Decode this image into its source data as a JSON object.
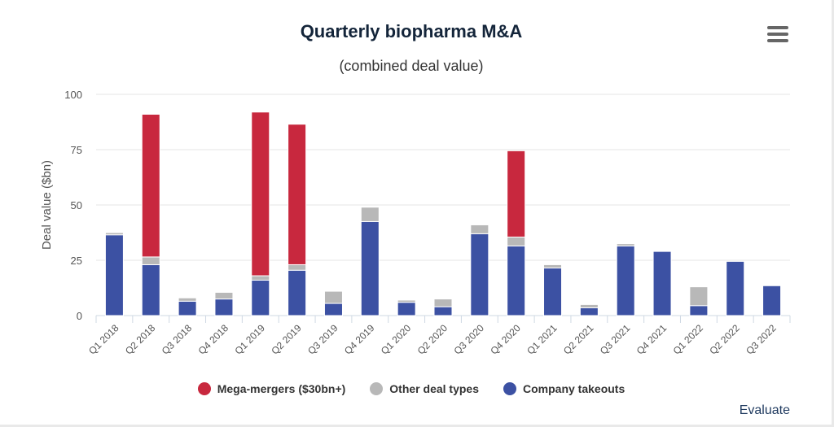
{
  "chart_data": {
    "type": "bar",
    "stacked": true,
    "title": "Quarterly biopharma M&A",
    "subtitle": "(combined deal value)",
    "ylabel": "Deal value ($bn)",
    "xlabel": "",
    "ylim": [
      0,
      100
    ],
    "yticks": [
      0,
      25,
      50,
      75,
      100
    ],
    "grid": true,
    "legend_position": "bottom",
    "categories": [
      "Q1 2018",
      "Q2 2018",
      "Q3 2018",
      "Q4 2018",
      "Q1 2019",
      "Q2 2019",
      "Q3 2019",
      "Q4 2019",
      "Q1 2020",
      "Q2 2020",
      "Q3 2020",
      "Q4 2020",
      "Q1 2021",
      "Q2 2021",
      "Q3 2021",
      "Q4 2021",
      "Q1 2022",
      "Q2 2022",
      "Q3 2022"
    ],
    "series": [
      {
        "name": "Company takeouts",
        "color": "#3c51a3",
        "values": [
          36.5,
          23,
          6.5,
          7.5,
          16,
          20.5,
          5.5,
          42.5,
          6,
          4,
          37,
          31.5,
          21.5,
          3.5,
          31.5,
          29,
          4.5,
          24.5,
          13.5
        ]
      },
      {
        "name": "Other deal types",
        "color": "#b8b8b8",
        "values": [
          1,
          3.5,
          1.5,
          3,
          2,
          2.5,
          5.5,
          6.5,
          1,
          3.5,
          4,
          4,
          1.5,
          1.5,
          1,
          0,
          8.5,
          0,
          0
        ]
      },
      {
        "name": "Mega-mergers ($30bn+)",
        "color": "#c8283e",
        "values": [
          0,
          64.5,
          0,
          0,
          74,
          63.5,
          0,
          0,
          0,
          0,
          0,
          39,
          0,
          0,
          0,
          0,
          0,
          0,
          0
        ]
      }
    ],
    "legend_order": [
      "Mega-mergers ($30bn+)",
      "Other deal types",
      "Company takeouts"
    ]
  },
  "legend": {
    "mega_label": "Mega-mergers ($30bn+)",
    "other_label": "Other deal types",
    "takeouts_label": "Company takeouts",
    "mega_color": "#c8283e",
    "other_color": "#b8b8b8",
    "takeouts_color": "#3c51a3"
  },
  "credit": "Evaluate",
  "icons": {
    "menu": "hamburger-menu-icon"
  }
}
